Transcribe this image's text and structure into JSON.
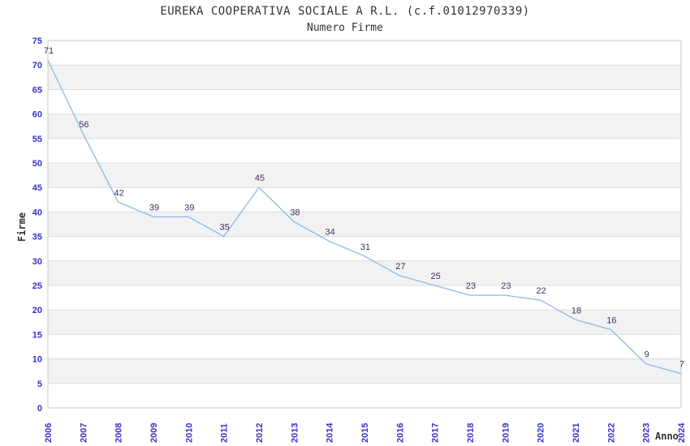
{
  "header": {
    "title": "EUREKA COOPERATIVA SOCIALE A R.L. (c.f.01012970339)",
    "subtitle": "Numero Firme"
  },
  "chart_data": {
    "type": "line",
    "title": "EUREKA COOPERATIVA SOCIALE A R.L. (c.f.01012970339)",
    "subtitle": "Numero Firme",
    "xlabel": "Anno",
    "ylabel": "Firme",
    "categories": [
      "2006",
      "2007",
      "2008",
      "2009",
      "2010",
      "2011",
      "2012",
      "2013",
      "2014",
      "2015",
      "2016",
      "2017",
      "2018",
      "2019",
      "2020",
      "2021",
      "2022",
      "2023",
      "2024"
    ],
    "series": [
      {
        "name": "Numero Firme",
        "values": [
          71,
          56,
          42,
          39,
          39,
          35,
          45,
          38,
          34,
          31,
          27,
          25,
          23,
          23,
          22,
          18,
          16,
          9,
          7
        ]
      }
    ],
    "ylim": [
      0,
      75
    ],
    "ytick_step": 5,
    "grid": true,
    "band_fill": true,
    "legend": "none",
    "colors": {
      "line": "#8CB8E8",
      "data_label": "#333366",
      "tick_label": "#3333CC",
      "band": "#F2F2F2",
      "gridline": "#DCDCDC",
      "border": "#C8C8C8",
      "title": "#333333"
    }
  }
}
